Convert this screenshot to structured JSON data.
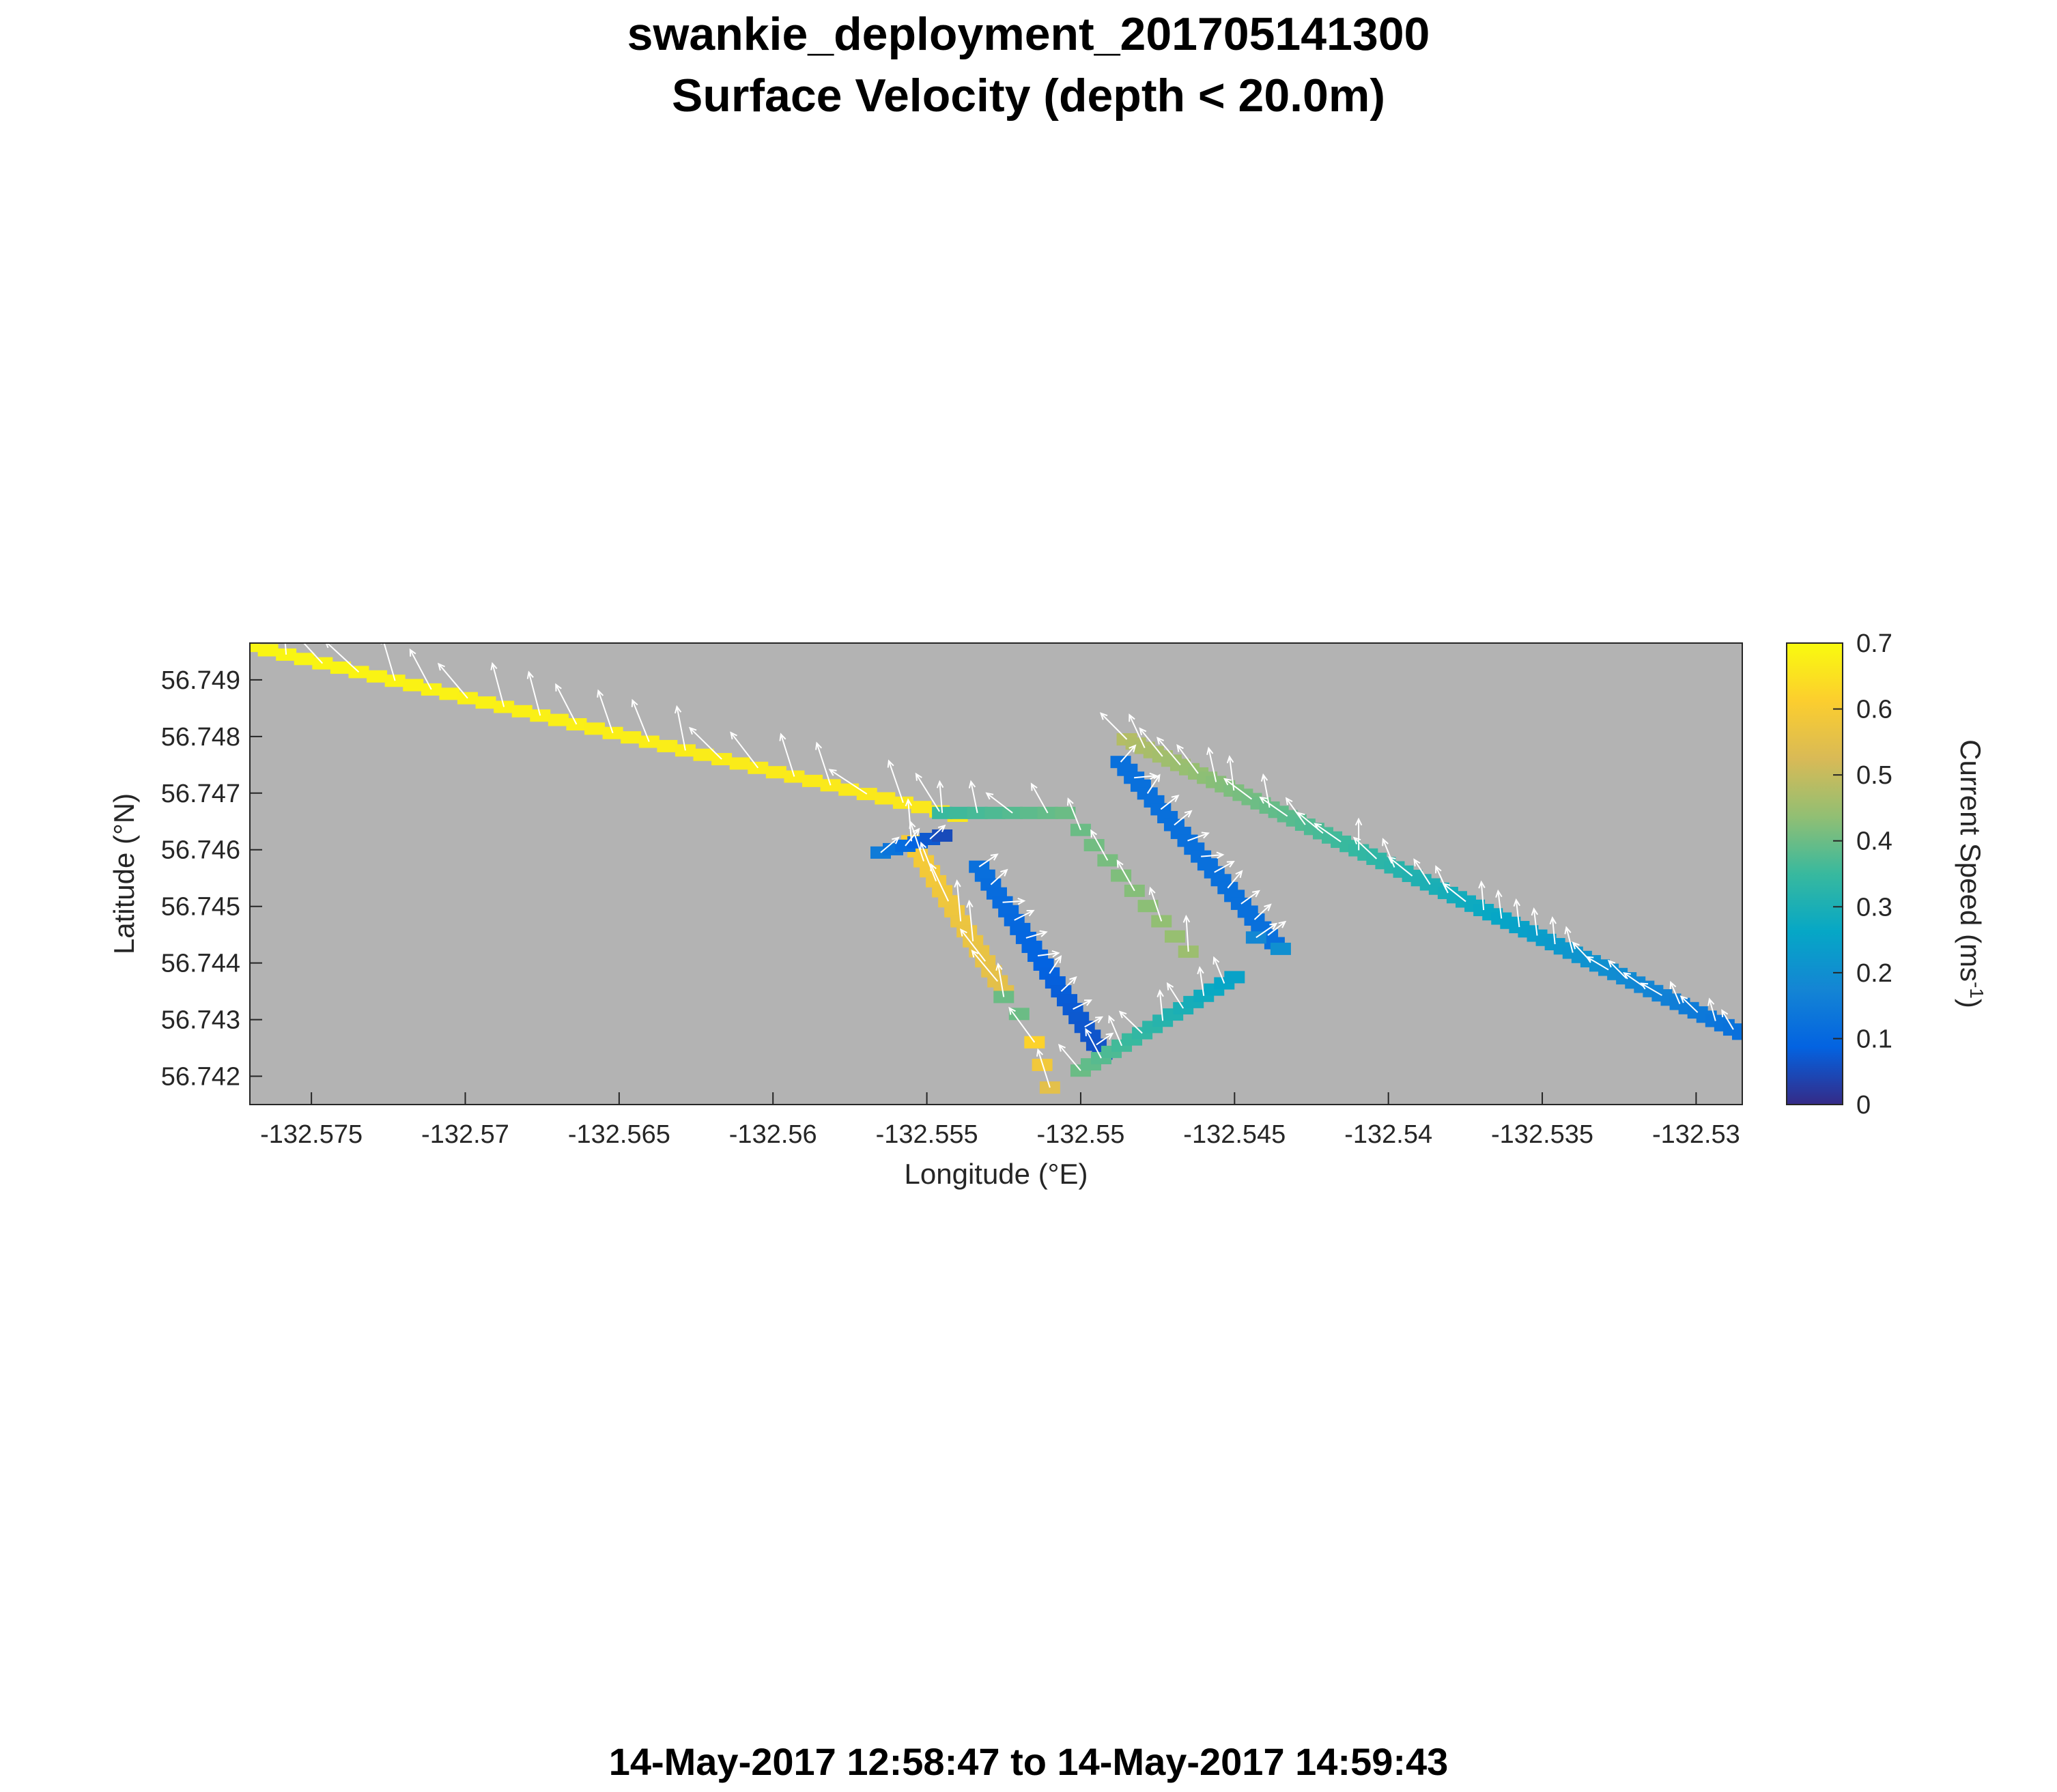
{
  "chart_data": {
    "type": "heatmap",
    "title": "swankie_deployment_201705141300",
    "subtitle": "Surface Velocity (depth < 20.0m)",
    "time_range": "14-May-2017 12:58:47 to 14-May-2017 14:59:43",
    "xlabel": "Longitude (°E)",
    "ylabel": "Latitude (°N)",
    "xlim": [
      -132.577,
      -132.5285
    ],
    "ylim": [
      56.7415,
      56.74965
    ],
    "x_ticks": [
      -132.575,
      -132.57,
      -132.565,
      -132.56,
      -132.555,
      -132.55,
      -132.545,
      -132.54,
      -132.535,
      -132.53
    ],
    "x_tick_labels": [
      "-132.575",
      "-132.57",
      "-132.565",
      "-132.56",
      "-132.555",
      "-132.55",
      "-132.545",
      "-132.54",
      "-132.535",
      "-132.53"
    ],
    "y_ticks": [
      56.742,
      56.743,
      56.744,
      56.745,
      56.746,
      56.747,
      56.748,
      56.749
    ],
    "y_tick_labels": [
      "56.742",
      "56.743",
      "56.744",
      "56.745",
      "56.746",
      "56.747",
      "56.748",
      "56.749"
    ],
    "background_color": "#b3b3b3",
    "arrow_color": "#ffffff",
    "colorbar": {
      "label": "Current Speed (ms-1)",
      "label_main": "Current Speed (ms",
      "label_sup": "-1",
      "label_close": ")",
      "colormap": "parula",
      "clim": [
        0,
        0.7
      ],
      "ticks": [
        0,
        0.1,
        0.2,
        0.3,
        0.4,
        0.5,
        0.6,
        0.7
      ],
      "tick_labels": [
        "0",
        "0.1",
        "0.2",
        "0.3",
        "0.4",
        "0.5",
        "0.6",
        "0.7"
      ]
    },
    "track_segments": [
      {
        "name": "northwest-track",
        "start": [
          -132.577,
          56.7496
        ],
        "end": [
          -132.554,
          56.7466
        ],
        "speed_start": 0.69,
        "speed_end": 0.66,
        "count": 40
      },
      {
        "name": "junction-track",
        "start": [
          -132.5545,
          56.74665
        ],
        "end": [
          -132.5505,
          56.74665
        ],
        "speed_start": 0.35,
        "speed_end": 0.4,
        "count": 8
      },
      {
        "name": "west-leg",
        "start": [
          -132.5555,
          56.74615
        ],
        "end": [
          -132.5525,
          56.7435
        ],
        "speed_start": 0.6,
        "speed_end": 0.55,
        "count": 16
      },
      {
        "name": "west-leg-tail",
        "start": [
          -132.5525,
          56.7434
        ],
        "end": [
          -132.552,
          56.7431
        ],
        "speed_start": 0.4,
        "speed_end": 0.4,
        "count": 2
      },
      {
        "name": "west-dark-cluster",
        "start": [
          -132.5565,
          56.74595
        ],
        "end": [
          -132.5545,
          56.74625
        ],
        "speed_start": 0.15,
        "speed_end": 0.05,
        "count": 6
      },
      {
        "name": "middle-dark-leg",
        "start": [
          -132.5533,
          56.7457
        ],
        "end": [
          -132.5493,
          56.7424
        ],
        "speed_start": 0.12,
        "speed_end": 0.06,
        "count": 22
      },
      {
        "name": "east-dark-leg",
        "start": [
          -132.5487,
          56.74755
        ],
        "end": [
          -132.5437,
          56.74435
        ],
        "speed_start": 0.12,
        "speed_end": 0.12,
        "count": 24
      },
      {
        "name": "east-connector",
        "start": [
          -132.5443,
          56.74445
        ],
        "end": [
          -132.5435,
          56.74425
        ],
        "speed_start": 0.18,
        "speed_end": 0.2,
        "count": 2
      },
      {
        "name": "southeast-return",
        "start": [
          -132.55,
          56.7421
        ],
        "end": [
          -132.545,
          56.74375
        ],
        "speed_start": 0.4,
        "speed_end": 0.25,
        "count": 16
      },
      {
        "name": "mid-scatter",
        "start": [
          -132.55,
          56.74635
        ],
        "end": [
          -132.5465,
          56.7442
        ],
        "speed_start": 0.4,
        "speed_end": 0.45,
        "count": 9
      },
      {
        "name": "south-scatter",
        "start": [
          -132.5515,
          56.7426
        ],
        "end": [
          -132.551,
          56.7418
        ],
        "speed_start": 0.62,
        "speed_end": 0.55,
        "count": 3
      },
      {
        "name": "northeast-track",
        "start": [
          -132.5485,
          56.74795
        ],
        "end": [
          -132.5285,
          56.74275
        ],
        "speed_start": 0.48,
        "speed_end": 0.12,
        "count": 70
      }
    ]
  }
}
